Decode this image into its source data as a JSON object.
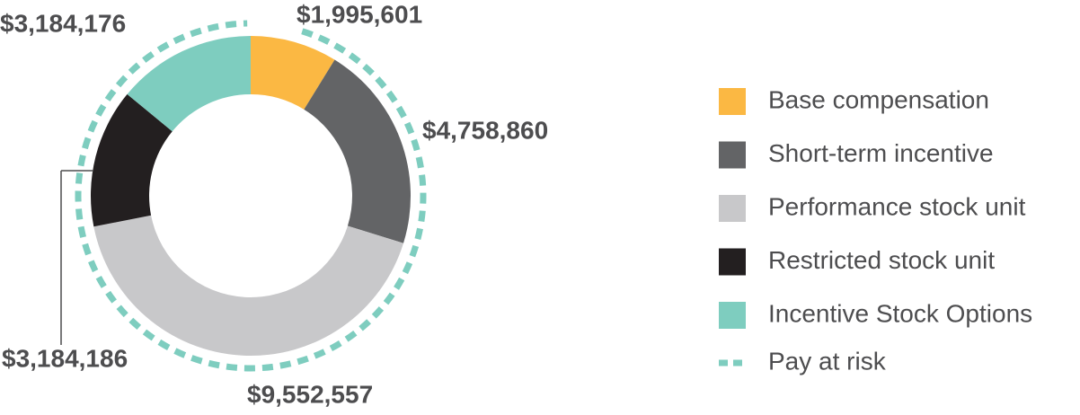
{
  "chart_data": {
    "type": "donut",
    "categories": [
      "Base compensation",
      "Short-term incentive",
      "Performance stock unit",
      "Restricted stock unit",
      "Incentive Stock Options"
    ],
    "values": [
      1995601,
      4758860,
      9552557,
      3184186,
      3184176
    ],
    "value_labels": [
      "$1,995,601",
      "$4,758,860",
      "$9,552,557",
      "$3,184,186",
      "$3,184,176"
    ],
    "colors": [
      "#fbb843",
      "#636466",
      "#c8c8ca",
      "#231f20",
      "#7ecdbf"
    ],
    "risk_label": "Pay at risk",
    "risk_color": "#7ecdbf"
  }
}
